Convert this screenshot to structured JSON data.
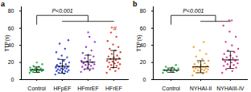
{
  "chart_data": [
    {
      "type": "scatter",
      "title": "a",
      "y_label": "TTP(s)",
      "categories": [
        "Control",
        "HFpEF",
        "HFmrEF",
        "HFrEF"
      ],
      "colors": [
        "#2db84d",
        "#3a4fd8",
        "#9b3fc4",
        "#e0483a"
      ],
      "values": [
        [
          8,
          9,
          9,
          10,
          10,
          10,
          11,
          11,
          11,
          12,
          12,
          13,
          13,
          14,
          15,
          16,
          18,
          20
        ],
        [
          6,
          7,
          8,
          9,
          9,
          10,
          10,
          11,
          11,
          12,
          12,
          13,
          13,
          14,
          14,
          15,
          15,
          16,
          17,
          18,
          19,
          20,
          22,
          24,
          26,
          28,
          32,
          36,
          42,
          46
        ],
        [
          9,
          11,
          12,
          13,
          14,
          15,
          16,
          17,
          18,
          18,
          19,
          20,
          21,
          22,
          23,
          25,
          27,
          29,
          31,
          34,
          38,
          44,
          50
        ],
        [
          8,
          10,
          12,
          13,
          14,
          15,
          16,
          17,
          18,
          19,
          20,
          20,
          21,
          22,
          23,
          24,
          25,
          26,
          27,
          28,
          30,
          32,
          34,
          36,
          38,
          41,
          45,
          50,
          55
        ]
      ],
      "means": [
        11.5,
        15.5,
        20.5,
        24
      ],
      "errors": [
        3.2,
        8,
        8,
        10
      ],
      "ylim": [
        0,
        85
      ],
      "yticks": [
        0,
        20,
        40,
        60,
        80
      ],
      "brackets": [
        {
          "from": "Control",
          "to": [
            "HFpEF",
            "HFmrEF",
            "HFrEF"
          ],
          "y": 75,
          "y_lower": 68,
          "label": "P<0.001"
        }
      ],
      "annotations": [
        {
          "category": "HFmrEF",
          "y": 54,
          "text": "*"
        },
        {
          "category": "HFrEF",
          "y": 60,
          "text": "*#"
        }
      ]
    },
    {
      "type": "scatter",
      "title": "b",
      "y_label": "TTP(s)",
      "categories": [
        "Control",
        "NYHAI-II",
        "NYHAIII-IV"
      ],
      "colors": [
        "#2db84d",
        "#f0a53c",
        "#e0409a"
      ],
      "values": [
        [
          8,
          9,
          10,
          10,
          11,
          11,
          12,
          12,
          13,
          14,
          15,
          17
        ],
        [
          5,
          7,
          8,
          9,
          10,
          10,
          11,
          11,
          12,
          12,
          13,
          13,
          14,
          14,
          15,
          15,
          16,
          17,
          18,
          19,
          20,
          22,
          24,
          27,
          30,
          34,
          38,
          44
        ],
        [
          8,
          10,
          12,
          14,
          15,
          16,
          17,
          18,
          19,
          20,
          21,
          22,
          23,
          24,
          25,
          26,
          27,
          28,
          30,
          32,
          34,
          36,
          40,
          44,
          50,
          56,
          63
        ]
      ],
      "means": [
        11,
        15,
        23
      ],
      "errors": [
        2.5,
        7,
        10
      ],
      "ylim": [
        0,
        85
      ],
      "yticks": [
        0,
        20,
        40,
        60,
        80
      ],
      "brackets": [
        {
          "from": "Control",
          "to": [
            "NYHAI-II",
            "NYHAIII-IV"
          ],
          "y": 75,
          "y_lower": 68,
          "label": "P<0.001"
        }
      ],
      "annotations": [
        {
          "category": "NYHAIII-IV",
          "y": 68,
          "text": "**"
        }
      ]
    }
  ]
}
